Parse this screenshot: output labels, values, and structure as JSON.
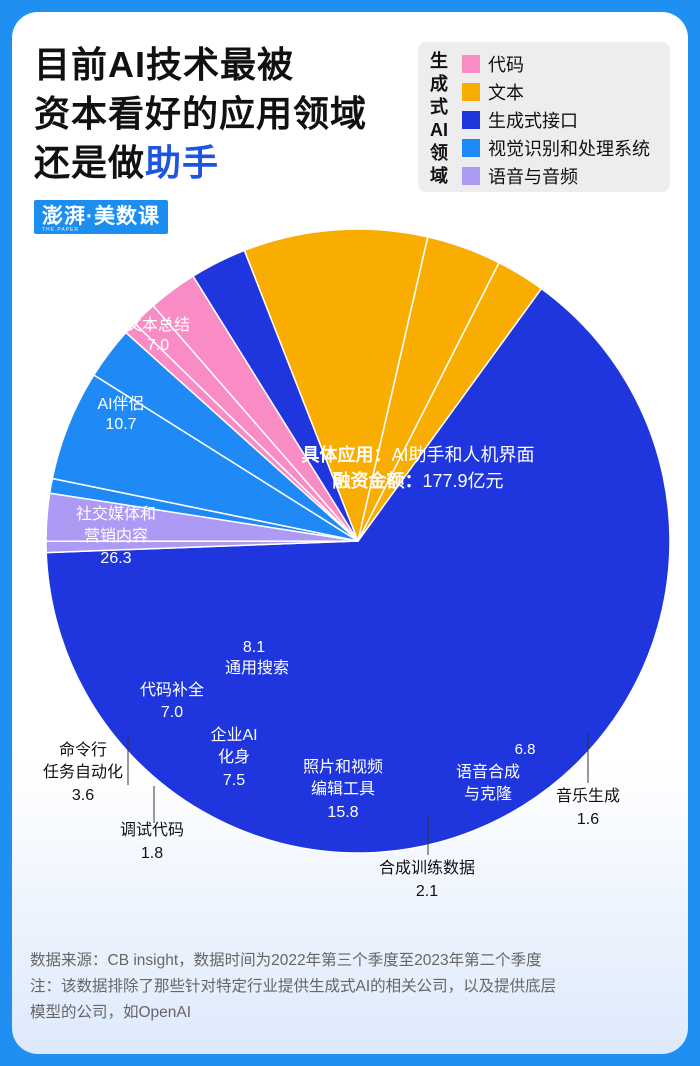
{
  "title": {
    "line1": "目前AI技术最被",
    "line2": "资本看好的应用领域",
    "line3_prefix": "还是做",
    "line3_highlight": "助手"
  },
  "brand": {
    "text": "澎湃·美数课",
    "sub": "THE PAPER"
  },
  "legend": {
    "title": "生成式AI领域",
    "items": [
      {
        "label": "代码",
        "color": "#f98cc4"
      },
      {
        "label": "文本",
        "color": "#f8ad00"
      },
      {
        "label": "生成式接口",
        "color": "#1f36de"
      },
      {
        "label": "视觉识别和处理系统",
        "color": "#1f89f5"
      },
      {
        "label": "语音与音频",
        "color": "#ad9af4"
      }
    ]
  },
  "chart_data": {
    "type": "pie",
    "title": "目前AI技术最被资本看好的应用领域还是做助手",
    "unit": "亿元",
    "categories": [
      "代码",
      "文本",
      "生成式接口",
      "视觉识别和处理系统",
      "语音与音频"
    ],
    "slices": [
      {
        "label": "具体应用：AI助手和人机界面",
        "value": 177.9,
        "category": "生成式接口",
        "annotation": [
          "具体应用：AI助手和人机界面",
          "融资金额：177.9亿元"
        ]
      },
      {
        "label": "音乐生成",
        "value": 1.6,
        "category": "语音与音频"
      },
      {
        "label": "语音合成与克隆",
        "value": 6.8,
        "category": "语音与音频"
      },
      {
        "label": "合成训练数据",
        "value": 2.1,
        "category": "视觉识别和处理系统"
      },
      {
        "label": "照片和视频编辑工具",
        "value": 15.8,
        "category": "视觉识别和处理系统"
      },
      {
        "label": "企业AI化身",
        "value": 7.5,
        "category": "视觉识别和处理系统"
      },
      {
        "label": "调试代码",
        "value": 1.8,
        "category": "代码"
      },
      {
        "label": "命令行任务自动化",
        "value": 3.6,
        "category": "代码"
      },
      {
        "label": "代码补全",
        "value": 7.0,
        "category": "代码"
      },
      {
        "label": "通用搜索",
        "value": 8.1,
        "category": "生成式接口"
      },
      {
        "label": "社交媒体和营销内容",
        "value": 26.3,
        "category": "文本"
      },
      {
        "label": "AI伴侣",
        "value": 10.7,
        "category": "文本"
      },
      {
        "label": "文本总结",
        "value": 7.0,
        "category": "文本"
      }
    ]
  },
  "labels": {
    "main1_bold": "具体应用：",
    "main1_rest": "AI助手和人机界面",
    "main2_bold": "融资金额：",
    "main2_rest": "177.9亿元",
    "summary_1": "文本总结",
    "summary_2": "7.0",
    "companion_1": "AI伴侣",
    "companion_2": "10.7",
    "social_1": "社交媒体和",
    "social_2": "营销内容",
    "social_3": "26.3",
    "search_1": "8.1",
    "search_2": "通用搜索",
    "completion_1": "代码补全",
    "completion_2": "7.0",
    "cli_1": "命令行",
    "cli_2": "任务自动化",
    "cli_3": "3.6",
    "debug_1": "调试代码",
    "debug_2": "1.8",
    "avatar_1": "企业AI",
    "avatar_2": "化身",
    "avatar_3": "7.5",
    "photo_1": "照片和视频",
    "photo_2": "编辑工具",
    "photo_3": "15.8",
    "synth_1": "合成训练数据",
    "synth_2": "2.1",
    "voice_1": "6.8",
    "voice_2": "语音合成",
    "voice_3": "与克隆",
    "music_1": "音乐生成",
    "music_2": "1.6"
  },
  "footer": {
    "source": "数据来源：CB insight，数据时间为2022年第三个季度至2023年第二个季度",
    "note1": "注：该数据排除了那些针对特定行业提供生成式AI的相关公司，以及提供底层",
    "note2": "模型的公司，如OpenAI"
  }
}
